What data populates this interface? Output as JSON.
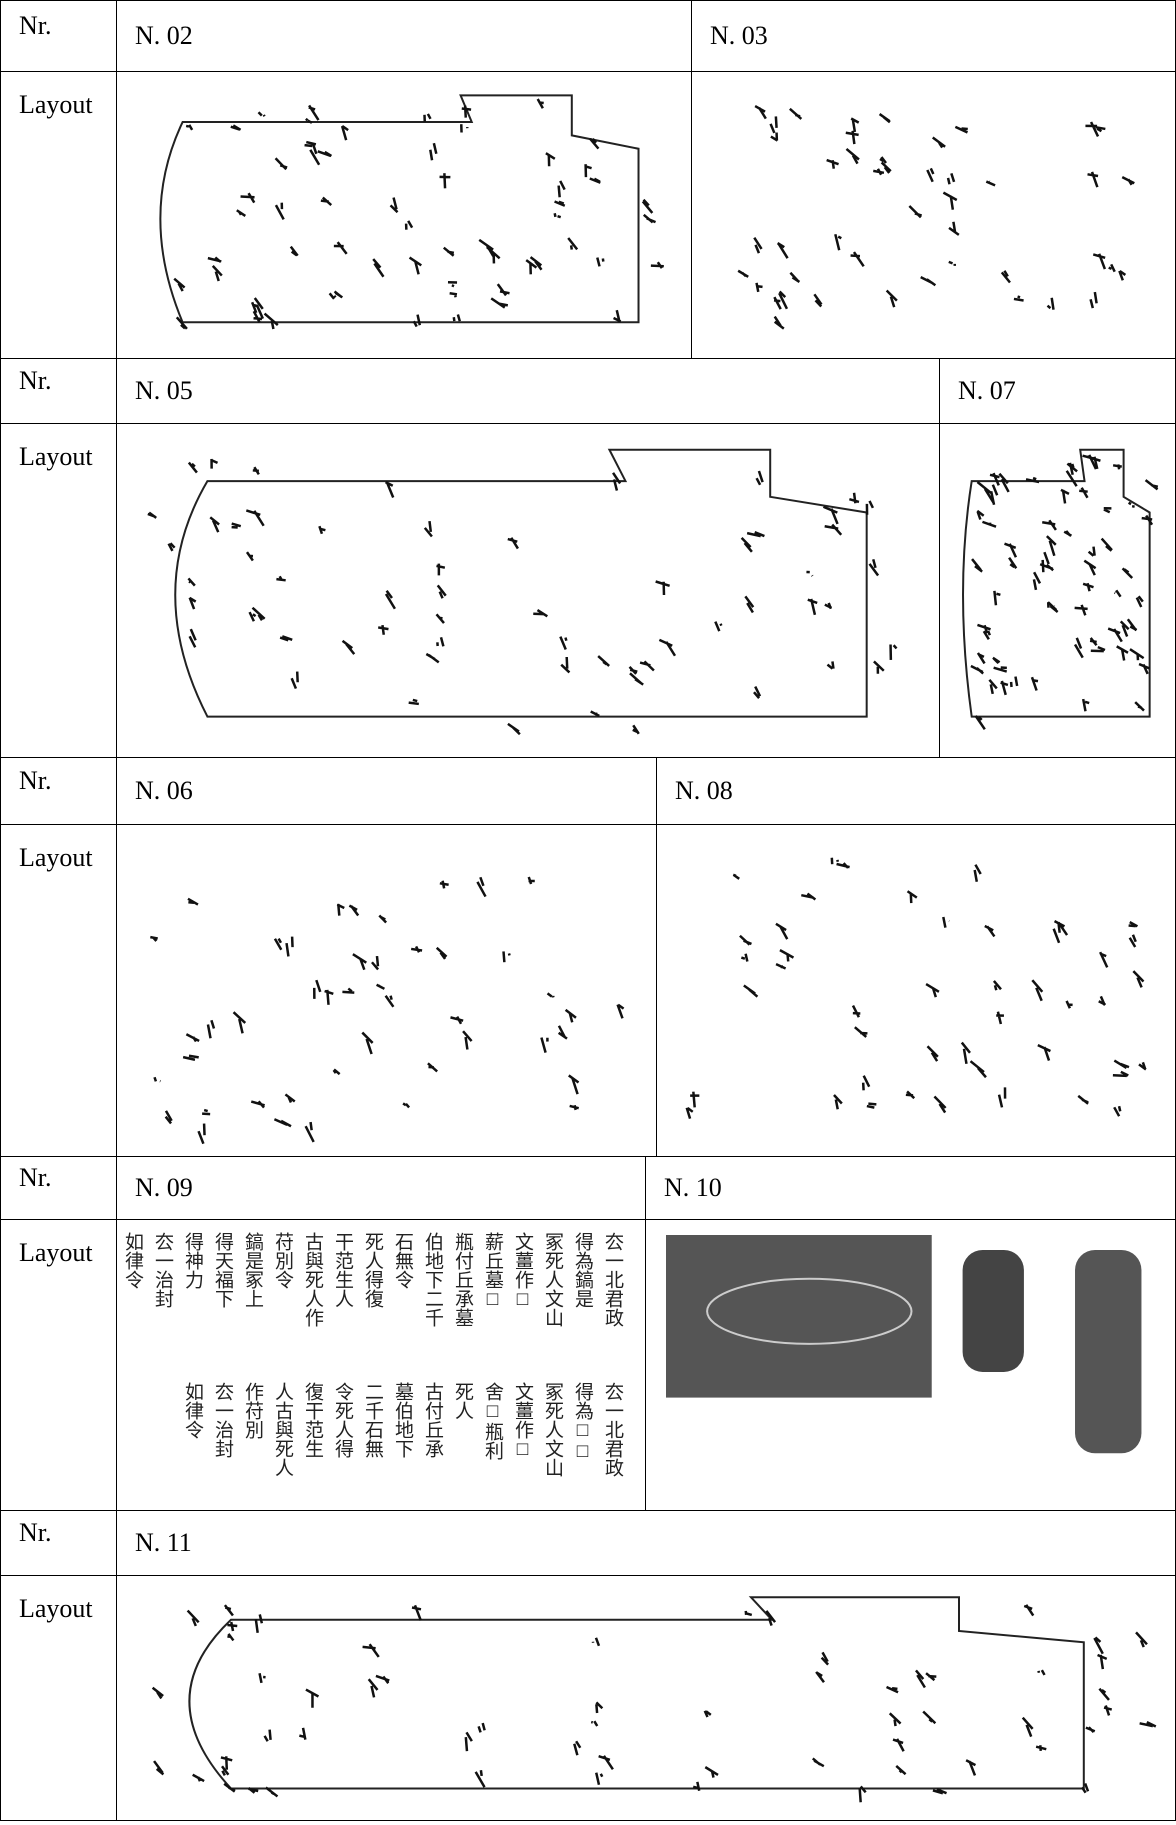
{
  "rows": [
    {
      "nr_label": "Nr.",
      "layout_label": "Layout",
      "entries": [
        {
          "id": "N. 02"
        },
        {
          "id": "N. 03"
        }
      ]
    },
    {
      "nr_label": "Nr.",
      "layout_label": "Layout",
      "entries": [
        {
          "id": "N. 05"
        },
        {
          "id": "N. 07"
        }
      ]
    },
    {
      "nr_label": "Nr.",
      "layout_label": "Layout",
      "entries": [
        {
          "id": "N. 06"
        },
        {
          "id": "N. 08"
        }
      ]
    },
    {
      "nr_label": "Nr.",
      "layout_label": "Layout",
      "entries": [
        {
          "id": "N. 09",
          "transcription": [
            [
              "厺一北君政",
              "得為鎬是",
              "冢死人文山",
              "文薑作□",
              "薪丘墓□",
              "瓶付丘承墓",
              "伯地下二千",
              "石無令",
              "死人得復",
              "干范生人",
              "古與死人作",
              "苻別令",
              "鎬是冢上",
              "得天福下",
              "得神力",
              "厺一治封",
              "如律令"
            ],
            [
              "厺一北君政",
              "得為□□",
              "冢死人文山",
              "文薑作□",
              "舍□瓶利",
              "死人",
              "古付丘承",
              "墓伯地下",
              "二千石無",
              "令死人得",
              "復干范生",
              "人古與死人",
              "作苻別",
              "厺一治封",
              "如律令"
            ]
          ]
        },
        {
          "id": "N. 10"
        }
      ]
    },
    {
      "nr_label": "Nr.",
      "layout_label": "Layout",
      "entries": [
        {
          "id": "N. 11"
        }
      ]
    }
  ]
}
